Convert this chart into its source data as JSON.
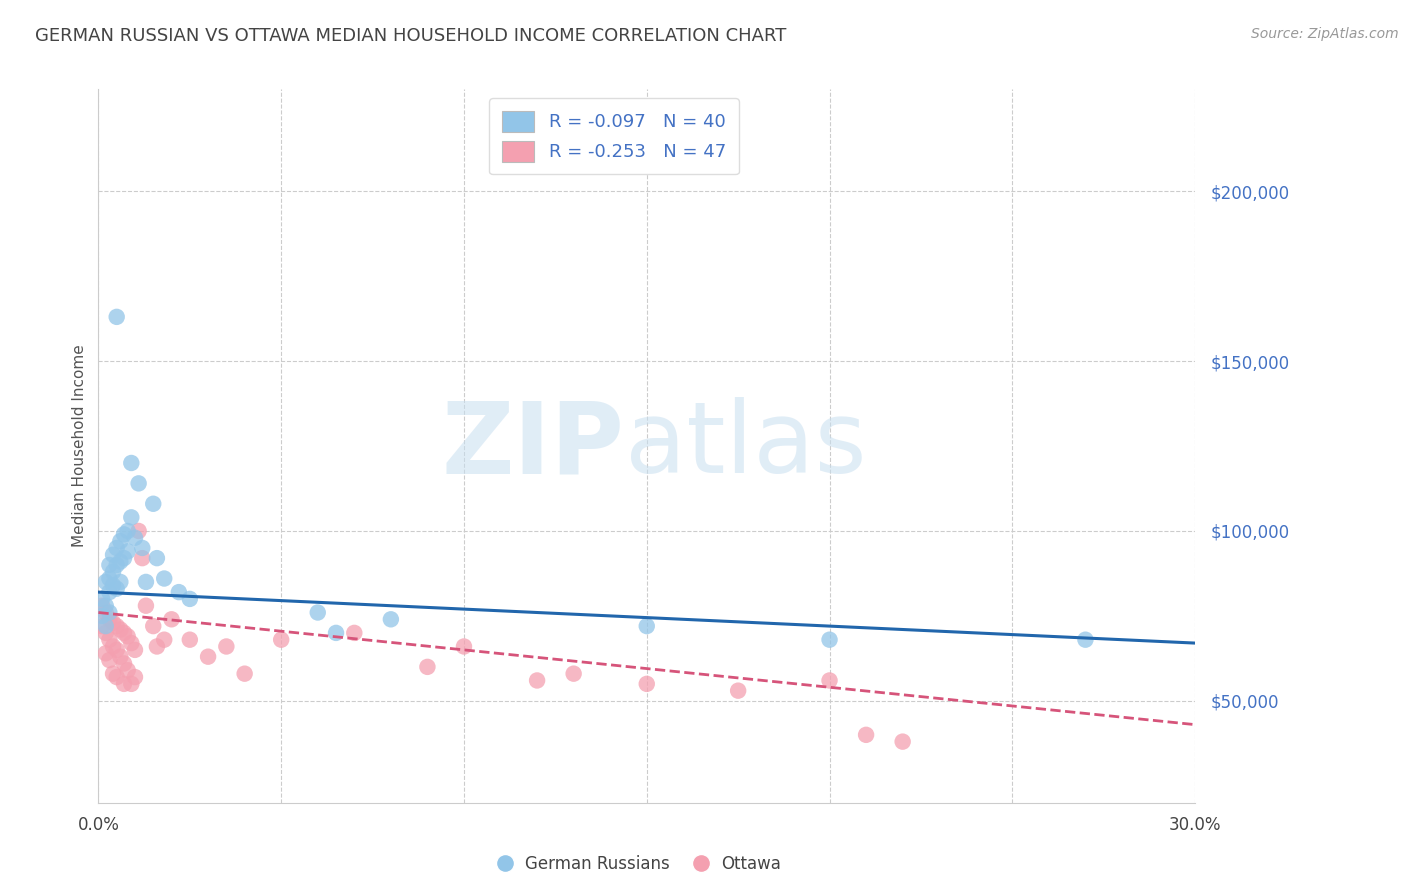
{
  "title": "GERMAN RUSSIAN VS OTTAWA MEDIAN HOUSEHOLD INCOME CORRELATION CHART",
  "source": "Source: ZipAtlas.com",
  "ylabel": "Median Household Income",
  "xlim": [
    0.0,
    0.3
  ],
  "ylim": [
    20000,
    230000
  ],
  "xticks": [
    0.0,
    0.05,
    0.1,
    0.15,
    0.2,
    0.25,
    0.3
  ],
  "xticklabels": [
    "0.0%",
    "",
    "",
    "",
    "",
    "",
    "30.0%"
  ],
  "ytick_positions": [
    50000,
    100000,
    150000,
    200000
  ],
  "ytick_labels": [
    "$50,000",
    "$100,000",
    "$150,000",
    "$200,000"
  ],
  "blue_color": "#92c5e8",
  "pink_color": "#f4a0b0",
  "blue_line_color": "#2166ac",
  "pink_line_color": "#d6547a",
  "R_blue": -0.097,
  "N_blue": 40,
  "R_pink": -0.253,
  "N_pink": 47,
  "watermark_zip": "ZIP",
  "watermark_atlas": "atlas",
  "legend_label_blue": "German Russians",
  "legend_label_pink": "Ottawa",
  "background_color": "#ffffff",
  "grid_color": "#cccccc",
  "title_color": "#444444",
  "axis_label_color": "#555555",
  "right_tick_color": "#4472c4",
  "bottom_tick_color": "#444444",
  "blue_scatter_x": [
    0.001,
    0.001,
    0.002,
    0.002,
    0.002,
    0.003,
    0.003,
    0.003,
    0.003,
    0.004,
    0.004,
    0.004,
    0.005,
    0.005,
    0.005,
    0.005,
    0.006,
    0.006,
    0.006,
    0.007,
    0.007,
    0.008,
    0.008,
    0.009,
    0.009,
    0.01,
    0.011,
    0.012,
    0.013,
    0.015,
    0.016,
    0.018,
    0.022,
    0.025,
    0.06,
    0.065,
    0.08,
    0.15,
    0.2,
    0.27
  ],
  "blue_scatter_y": [
    80000,
    75000,
    85000,
    78000,
    72000,
    90000,
    86000,
    82000,
    76000,
    93000,
    88000,
    84000,
    163000,
    95000,
    90000,
    83000,
    97000,
    91000,
    85000,
    99000,
    92000,
    100000,
    94000,
    120000,
    104000,
    98000,
    114000,
    95000,
    85000,
    108000,
    92000,
    86000,
    82000,
    80000,
    76000,
    70000,
    74000,
    72000,
    68000,
    68000
  ],
  "pink_scatter_x": [
    0.001,
    0.001,
    0.002,
    0.002,
    0.002,
    0.003,
    0.003,
    0.003,
    0.004,
    0.004,
    0.004,
    0.005,
    0.005,
    0.005,
    0.006,
    0.006,
    0.007,
    0.007,
    0.007,
    0.008,
    0.008,
    0.009,
    0.009,
    0.01,
    0.01,
    0.011,
    0.012,
    0.013,
    0.015,
    0.016,
    0.018,
    0.02,
    0.025,
    0.03,
    0.035,
    0.04,
    0.05,
    0.07,
    0.09,
    0.1,
    0.12,
    0.13,
    0.15,
    0.175,
    0.2,
    0.21,
    0.22
  ],
  "pink_scatter_y": [
    78000,
    72000,
    76000,
    70000,
    64000,
    74000,
    68000,
    62000,
    73000,
    66000,
    58000,
    72000,
    65000,
    57000,
    71000,
    63000,
    70000,
    61000,
    55000,
    69000,
    59000,
    67000,
    55000,
    65000,
    57000,
    100000,
    92000,
    78000,
    72000,
    66000,
    68000,
    74000,
    68000,
    63000,
    66000,
    58000,
    68000,
    70000,
    60000,
    66000,
    56000,
    58000,
    55000,
    53000,
    56000,
    40000,
    38000
  ]
}
